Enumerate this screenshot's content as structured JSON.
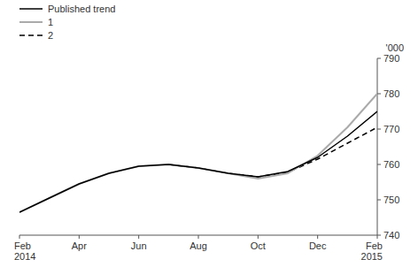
{
  "chart_data": {
    "type": "line",
    "y_label": "'000",
    "categories": [
      "Feb\n2014",
      null,
      "Apr",
      null,
      "Jun",
      null,
      "Aug",
      null,
      "Oct",
      null,
      "Dec",
      null,
      "Feb\n2015"
    ],
    "series": [
      {
        "name": "Published trend",
        "color": "#000000",
        "line_style": "solid",
        "values": [
          746.5,
          750.5,
          754.5,
          757.5,
          759.5,
          760.0,
          759.0,
          757.5,
          756.5,
          758.0,
          762.0,
          768.0,
          775.0
        ]
      },
      {
        "name": "1",
        "color": "#aaaaaa",
        "line_style": "solid",
        "values": [
          746.5,
          750.5,
          754.5,
          757.5,
          759.5,
          760.0,
          759.0,
          757.5,
          756.0,
          757.5,
          762.5,
          770.5,
          780.0
        ]
      },
      {
        "name": "2",
        "color": "#000000",
        "line_style": "dashed",
        "values": [
          null,
          null,
          null,
          null,
          null,
          760.0,
          759.0,
          757.5,
          756.5,
          757.8,
          761.5,
          766.0,
          770.5
        ]
      }
    ],
    "ylim": [
      740,
      790
    ],
    "yticks": [
      740,
      750,
      760,
      770,
      780,
      790
    ],
    "grid": false,
    "legend": "top left"
  }
}
